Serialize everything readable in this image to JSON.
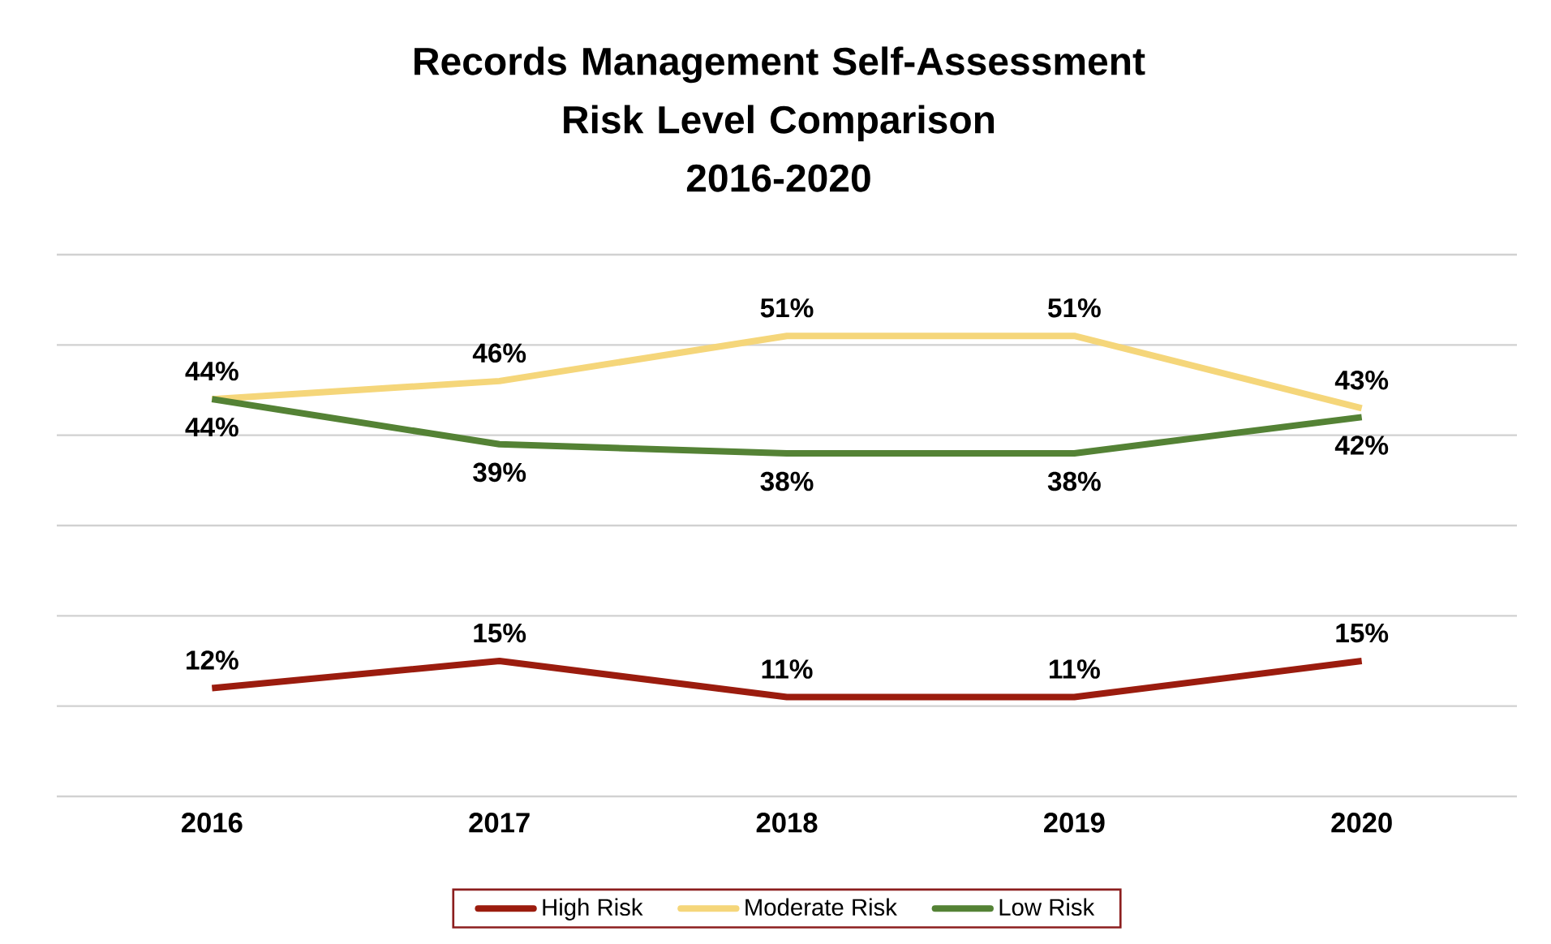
{
  "chart_data": {
    "type": "line",
    "title": "Records Management Self-Assessment\nRisk Level Comparison\n2016-2020",
    "categories": [
      "2016",
      "2017",
      "2018",
      "2019",
      "2020"
    ],
    "series": [
      {
        "name": "High Risk",
        "color": "#9b1c0e",
        "values": [
          12,
          15,
          11,
          11,
          15
        ],
        "value_labels": [
          "12%",
          "15%",
          "11%",
          "11%",
          "15%"
        ]
      },
      {
        "name": "Moderate Risk",
        "color": "#f5d67a",
        "values": [
          44,
          46,
          51,
          51,
          43
        ],
        "value_labels": [
          "44%",
          "46%",
          "51%",
          "51%",
          "43%"
        ]
      },
      {
        "name": "Low Risk",
        "color": "#548235",
        "values": [
          44,
          39,
          38,
          38,
          42
        ],
        "value_labels": [
          "44%",
          "39%",
          "38%",
          "38%",
          "42%"
        ]
      }
    ],
    "ylim": [
      0,
      60
    ],
    "yticks": [
      {
        "value": 0,
        "label": null
      },
      {
        "value": 10,
        "label": null
      },
      {
        "value": 20,
        "label": null
      },
      {
        "value": 30,
        "label": null
      },
      {
        "value": 40,
        "label": null
      },
      {
        "value": 50,
        "label": null
      },
      {
        "value": 60,
        "label": null
      }
    ],
    "tick_labels": "x",
    "grid": "y",
    "legend": "bottom",
    "marker": "none",
    "line_style": "solid"
  }
}
